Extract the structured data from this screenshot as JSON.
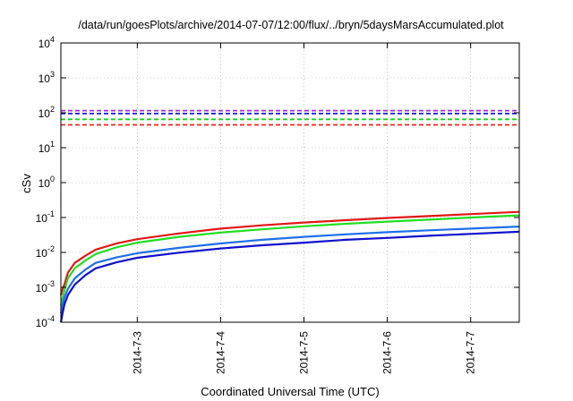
{
  "chart_data": {
    "type": "line",
    "title": "/data/run/goesPlots/archive/2014-07-07/12:00/flux/../bryn/5daysMarsAccumulated.plot",
    "xlabel": "Coordinated Universal Time (UTC)",
    "ylabel": "cSv",
    "y_scale": "log",
    "ylim": [
      0.0001,
      10000
    ],
    "xlim_days": [
      "2014-07-02 02:00",
      "2014-07-07 14:00"
    ],
    "grid": true,
    "y_ticks": [
      {
        "value": 0.0001,
        "base": "10",
        "exp": "-4"
      },
      {
        "value": 0.001,
        "base": "10",
        "exp": "-3"
      },
      {
        "value": 0.01,
        "base": "10",
        "exp": "-2"
      },
      {
        "value": 0.1,
        "base": "10",
        "exp": "-1"
      },
      {
        "value": 1,
        "base": "10",
        "exp": "0"
      },
      {
        "value": 10,
        "base": "10",
        "exp": "1"
      },
      {
        "value": 100,
        "base": "10",
        "exp": "2"
      },
      {
        "value": 1000,
        "base": "10",
        "exp": "3"
      },
      {
        "value": 10000,
        "base": "10",
        "exp": "4"
      }
    ],
    "x_ticks": [
      "2014-7-3",
      "2014-7-4",
      "2014-7-5",
      "2014-7-6",
      "2014-7-7"
    ],
    "reference_lines": [
      {
        "y": 115,
        "color": "#9933cc"
      },
      {
        "y": 95,
        "color": "#1a1add"
      },
      {
        "y": 65,
        "color": "#22cc22"
      },
      {
        "y": 45,
        "color": "#ee2222"
      }
    ],
    "series": [
      {
        "color": "#e01818",
        "x": [
          "2014-07-02 02:00",
          "2014-07-02 02:30",
          "2014-07-02 03:00",
          "2014-07-02 04:00",
          "2014-07-02 06:00",
          "2014-07-02 09:00",
          "2014-07-02 12:00",
          "2014-07-02 18:00",
          "2014-07-03 00:00",
          "2014-07-03 12:00",
          "2014-07-04 00:00",
          "2014-07-04 12:00",
          "2014-07-05 00:00",
          "2014-07-05 12:00",
          "2014-07-06 00:00",
          "2014-07-06 12:00",
          "2014-07-07 00:00",
          "2014-07-07 14:00"
        ],
        "y": [
          0.0006,
          0.0009,
          0.0012,
          0.0026,
          0.005,
          0.008,
          0.012,
          0.018,
          0.024,
          0.035,
          0.048,
          0.06,
          0.072,
          0.084,
          0.097,
          0.11,
          0.125,
          0.145
        ]
      },
      {
        "color": "#22dd22",
        "x": [
          "2014-07-02 02:00",
          "2014-07-02 02:30",
          "2014-07-02 03:00",
          "2014-07-02 04:00",
          "2014-07-02 06:00",
          "2014-07-02 09:00",
          "2014-07-02 12:00",
          "2014-07-02 18:00",
          "2014-07-03 00:00",
          "2014-07-03 12:00",
          "2014-07-04 00:00",
          "2014-07-04 12:00",
          "2014-07-05 00:00",
          "2014-07-05 12:00",
          "2014-07-06 00:00",
          "2014-07-06 12:00",
          "2014-07-07 00:00",
          "2014-07-07 14:00"
        ],
        "y": [
          0.0003,
          0.0005,
          0.0008,
          0.0018,
          0.0035,
          0.0058,
          0.009,
          0.014,
          0.019,
          0.028,
          0.037,
          0.046,
          0.056,
          0.066,
          0.076,
          0.087,
          0.1,
          0.115
        ]
      },
      {
        "color": "#1e6fe8",
        "x": [
          "2014-07-02 02:00",
          "2014-07-02 02:30",
          "2014-07-02 03:00",
          "2014-07-02 04:00",
          "2014-07-02 06:00",
          "2014-07-02 09:00",
          "2014-07-02 12:00",
          "2014-07-02 18:00",
          "2014-07-03 00:00",
          "2014-07-03 12:00",
          "2014-07-04 00:00",
          "2014-07-04 12:00",
          "2014-07-05 00:00",
          "2014-07-05 12:00",
          "2014-07-06 00:00",
          "2014-07-06 12:00",
          "2014-07-07 00:00",
          "2014-07-07 14:00"
        ],
        "y": [
          0.00018,
          0.0003,
          0.0005,
          0.0009,
          0.0018,
          0.0032,
          0.005,
          0.0072,
          0.0095,
          0.0135,
          0.018,
          0.023,
          0.028,
          0.033,
          0.038,
          0.043,
          0.048,
          0.055
        ]
      },
      {
        "color": "#1010cc",
        "x": [
          "2014-07-02 02:00",
          "2014-07-02 02:30",
          "2014-07-02 03:00",
          "2014-07-02 04:00",
          "2014-07-02 06:00",
          "2014-07-02 09:00",
          "2014-07-02 12:00",
          "2014-07-02 18:00",
          "2014-07-03 00:00",
          "2014-07-03 12:00",
          "2014-07-04 00:00",
          "2014-07-04 12:00",
          "2014-07-05 00:00",
          "2014-07-05 12:00",
          "2014-07-06 00:00",
          "2014-07-06 12:00",
          "2014-07-07 00:00",
          "2014-07-07 14:00"
        ],
        "y": [
          0.0001,
          0.00018,
          0.00032,
          0.0006,
          0.0012,
          0.0022,
          0.0035,
          0.0052,
          0.007,
          0.0098,
          0.013,
          0.016,
          0.019,
          0.023,
          0.026,
          0.03,
          0.034,
          0.039
        ]
      }
    ]
  }
}
